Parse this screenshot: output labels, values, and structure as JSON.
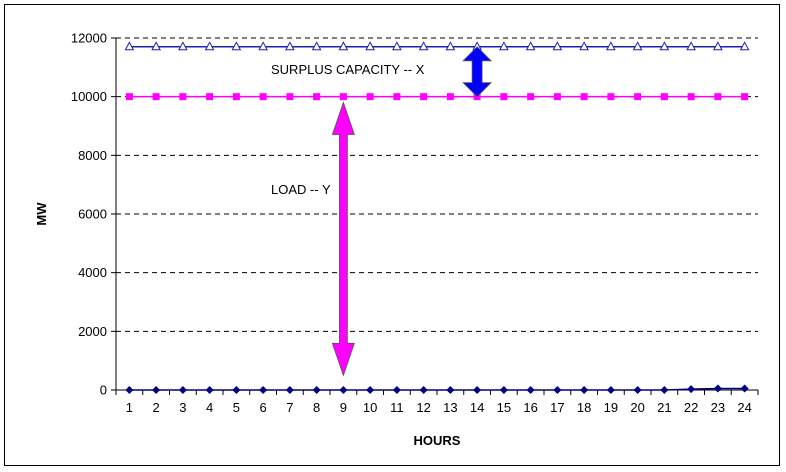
{
  "chart_data": {
    "type": "line",
    "title": "",
    "xlabel": "HOURS",
    "ylabel": "MW",
    "x": [
      1,
      2,
      3,
      4,
      5,
      6,
      7,
      8,
      9,
      10,
      11,
      12,
      13,
      14,
      15,
      16,
      17,
      18,
      19,
      20,
      21,
      22,
      23,
      24
    ],
    "ylim": [
      0,
      12000
    ],
    "yticks": [
      0,
      2000,
      4000,
      6000,
      8000,
      10000,
      12000
    ],
    "grid": "horizontal-dashed",
    "series": [
      {
        "values": [
          11700,
          11700,
          11700,
          11700,
          11700,
          11700,
          11700,
          11700,
          11700,
          11700,
          11700,
          11700,
          11700,
          11700,
          11700,
          11700,
          11700,
          11700,
          11700,
          11700,
          11700,
          11700,
          11700,
          11700
        ],
        "color": "#1f1fb4",
        "marker": "triangle"
      },
      {
        "values": [
          10000,
          10000,
          10000,
          10000,
          10000,
          10000,
          10000,
          10000,
          10000,
          10000,
          10000,
          10000,
          10000,
          10000,
          10000,
          10000,
          10000,
          10000,
          10000,
          10000,
          10000,
          10000,
          10000,
          10000
        ],
        "color": "#ff00ff",
        "marker": "square"
      },
      {
        "values": [
          0,
          0,
          0,
          0,
          0,
          0,
          0,
          0,
          0,
          0,
          0,
          0,
          0,
          0,
          0,
          0,
          0,
          0,
          0,
          0,
          0,
          30,
          50,
          50
        ],
        "color": "#000080",
        "marker": "diamond"
      }
    ],
    "annotations": [
      {
        "text": "SURPLUS CAPACITY -- X",
        "x": 14,
        "from": 10000,
        "to": 11700,
        "color": "#0000ff"
      },
      {
        "text": "LOAD -- Y",
        "x": 9,
        "from": 500,
        "to": 9800,
        "color": "#ff00ff"
      }
    ]
  }
}
